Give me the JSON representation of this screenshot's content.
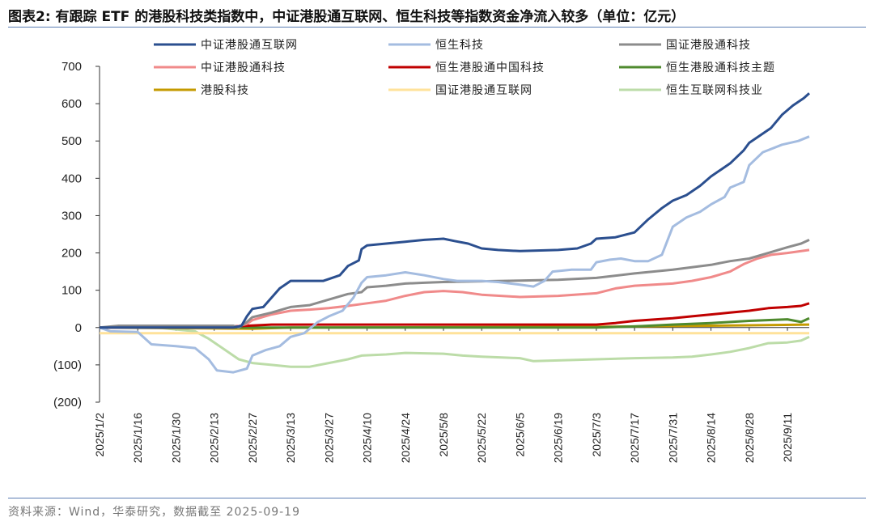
{
  "header": {
    "title": "图表2:   有跟踪 ETF 的港股科技类指数中，中证港股通互联网、恒生科技等指数资金净流入较多（单位：亿元）"
  },
  "footer": {
    "source": "资料来源：Wind，华泰研究，数据截至 2025-09-19"
  },
  "chart_data": {
    "type": "line",
    "title": "有跟踪 ETF 的港股科技类指数中，中证港股通互联网、恒生科技等指数资金净流入较多",
    "ylabel": "亿元",
    "ylim": [
      -200,
      700
    ],
    "yticks": [
      700,
      600,
      500,
      400,
      300,
      200,
      100,
      0,
      -100,
      -200
    ],
    "ytick_labels": [
      "700",
      "600",
      "500",
      "400",
      "300",
      "200",
      "100",
      "0",
      "(100)",
      "(200)"
    ],
    "xlim": [
      "2025-01-02",
      "2025-09-19"
    ],
    "xticks": [
      "2025-01-02",
      "2025-01-16",
      "2025-01-30",
      "2025-02-13",
      "2025-02-27",
      "2025-03-13",
      "2025-03-27",
      "2025-04-10",
      "2025-04-24",
      "2025-05-08",
      "2025-05-22",
      "2025-06-05",
      "2025-06-19",
      "2025-07-03",
      "2025-07-17",
      "2025-07-31",
      "2025-08-14",
      "2025-08-28",
      "2025-09-11"
    ],
    "xtick_labels": [
      "2025/1/2",
      "2025/1/16",
      "2025/1/30",
      "2025/2/13",
      "2025/2/27",
      "2025/3/13",
      "2025/3/27",
      "2025/4/10",
      "2025/4/24",
      "2025/5/8",
      "2025/5/22",
      "2025/6/5",
      "2025/6/19",
      "2025/7/3",
      "2025/7/17",
      "2025/7/31",
      "2025/8/14",
      "2025/8/28",
      "2025/9/11"
    ],
    "grid": false,
    "legend_position": "top",
    "series": [
      {
        "name": "中证港股通互联网",
        "color": "#2b4f8f",
        "width": 3,
        "points": [
          [
            "2025-01-02",
            0
          ],
          [
            "2025-02-20",
            0
          ],
          [
            "2025-02-23",
            5
          ],
          [
            "2025-02-25",
            30
          ],
          [
            "2025-02-27",
            50
          ],
          [
            "2025-03-03",
            55
          ],
          [
            "2025-03-06",
            80
          ],
          [
            "2025-03-09",
            105
          ],
          [
            "2025-03-11",
            115
          ],
          [
            "2025-03-13",
            125
          ],
          [
            "2025-03-20",
            125
          ],
          [
            "2025-03-25",
            125
          ],
          [
            "2025-03-27",
            130
          ],
          [
            "2025-03-31",
            140
          ],
          [
            "2025-04-03",
            165
          ],
          [
            "2025-04-07",
            180
          ],
          [
            "2025-04-08",
            210
          ],
          [
            "2025-04-10",
            220
          ],
          [
            "2025-04-17",
            225
          ],
          [
            "2025-04-24",
            230
          ],
          [
            "2025-05-01",
            235
          ],
          [
            "2025-05-08",
            238
          ],
          [
            "2025-05-12",
            232
          ],
          [
            "2025-05-17",
            225
          ],
          [
            "2025-05-22",
            212
          ],
          [
            "2025-05-28",
            208
          ],
          [
            "2025-06-05",
            205
          ],
          [
            "2025-06-19",
            208
          ],
          [
            "2025-06-26",
            212
          ],
          [
            "2025-07-01",
            225
          ],
          [
            "2025-07-03",
            238
          ],
          [
            "2025-07-10",
            242
          ],
          [
            "2025-07-17",
            255
          ],
          [
            "2025-07-22",
            290
          ],
          [
            "2025-07-27",
            320
          ],
          [
            "2025-07-31",
            340
          ],
          [
            "2025-08-05",
            355
          ],
          [
            "2025-08-10",
            380
          ],
          [
            "2025-08-14",
            405
          ],
          [
            "2025-08-21",
            440
          ],
          [
            "2025-08-26",
            475
          ],
          [
            "2025-08-28",
            495
          ],
          [
            "2025-09-02",
            520
          ],
          [
            "2025-09-05",
            535
          ],
          [
            "2025-09-09",
            570
          ],
          [
            "2025-09-13",
            595
          ],
          [
            "2025-09-17",
            615
          ],
          [
            "2025-09-19",
            628
          ]
        ]
      },
      {
        "name": "恒生科技",
        "color": "#a4bce0",
        "width": 3,
        "points": [
          [
            "2025-01-02",
            0
          ],
          [
            "2025-01-06",
            -10
          ],
          [
            "2025-01-16",
            -12
          ],
          [
            "2025-01-21",
            -45
          ],
          [
            "2025-01-30",
            -50
          ],
          [
            "2025-02-06",
            -55
          ],
          [
            "2025-02-11",
            -85
          ],
          [
            "2025-02-14",
            -115
          ],
          [
            "2025-02-20",
            -120
          ],
          [
            "2025-02-25",
            -110
          ],
          [
            "2025-02-27",
            -75
          ],
          [
            "2025-03-04",
            -60
          ],
          [
            "2025-03-09",
            -50
          ],
          [
            "2025-03-13",
            -25
          ],
          [
            "2025-03-18",
            -15
          ],
          [
            "2025-03-23",
            15
          ],
          [
            "2025-03-27",
            30
          ],
          [
            "2025-04-01",
            45
          ],
          [
            "2025-04-05",
            80
          ],
          [
            "2025-04-08",
            120
          ],
          [
            "2025-04-10",
            135
          ],
          [
            "2025-04-17",
            140
          ],
          [
            "2025-04-24",
            148
          ],
          [
            "2025-05-01",
            140
          ],
          [
            "2025-05-08",
            130
          ],
          [
            "2025-05-13",
            125
          ],
          [
            "2025-05-22",
            125
          ],
          [
            "2025-05-28",
            122
          ],
          [
            "2025-06-05",
            115
          ],
          [
            "2025-06-10",
            110
          ],
          [
            "2025-06-14",
            125
          ],
          [
            "2025-06-17",
            150
          ],
          [
            "2025-06-24",
            155
          ],
          [
            "2025-07-01",
            155
          ],
          [
            "2025-07-03",
            175
          ],
          [
            "2025-07-08",
            182
          ],
          [
            "2025-07-12",
            185
          ],
          [
            "2025-07-17",
            178
          ],
          [
            "2025-07-22",
            178
          ],
          [
            "2025-07-27",
            195
          ],
          [
            "2025-07-31",
            270
          ],
          [
            "2025-08-05",
            295
          ],
          [
            "2025-08-10",
            310
          ],
          [
            "2025-08-14",
            330
          ],
          [
            "2025-08-19",
            350
          ],
          [
            "2025-08-21",
            375
          ],
          [
            "2025-08-26",
            390
          ],
          [
            "2025-08-28",
            435
          ],
          [
            "2025-09-02",
            470
          ],
          [
            "2025-09-09",
            490
          ],
          [
            "2025-09-15",
            500
          ],
          [
            "2025-09-19",
            512
          ]
        ]
      },
      {
        "name": "国证港股通科技",
        "color": "#8c8c8c",
        "width": 3,
        "points": [
          [
            "2025-01-02",
            0
          ],
          [
            "2025-01-09",
            5
          ],
          [
            "2025-02-20",
            5
          ],
          [
            "2025-02-22",
            0
          ],
          [
            "2025-02-25",
            15
          ],
          [
            "2025-02-27",
            28
          ],
          [
            "2025-03-06",
            40
          ],
          [
            "2025-03-13",
            55
          ],
          [
            "2025-03-20",
            60
          ],
          [
            "2025-03-27",
            75
          ],
          [
            "2025-04-03",
            90
          ],
          [
            "2025-04-08",
            95
          ],
          [
            "2025-04-10",
            108
          ],
          [
            "2025-04-17",
            112
          ],
          [
            "2025-04-24",
            118
          ],
          [
            "2025-05-01",
            120
          ],
          [
            "2025-05-08",
            122
          ],
          [
            "2025-05-22",
            124
          ],
          [
            "2025-06-05",
            126
          ],
          [
            "2025-06-19",
            128
          ],
          [
            "2025-07-03",
            133
          ],
          [
            "2025-07-17",
            145
          ],
          [
            "2025-07-31",
            155
          ],
          [
            "2025-08-14",
            168
          ],
          [
            "2025-08-21",
            178
          ],
          [
            "2025-08-28",
            185
          ],
          [
            "2025-09-04",
            200
          ],
          [
            "2025-09-11",
            215
          ],
          [
            "2025-09-16",
            225
          ],
          [
            "2025-09-19",
            235
          ]
        ]
      },
      {
        "name": "中证港股通科技",
        "color": "#f08a8a",
        "width": 3,
        "points": [
          [
            "2025-01-02",
            0
          ],
          [
            "2025-02-20",
            0
          ],
          [
            "2025-02-25",
            10
          ],
          [
            "2025-02-27",
            20
          ],
          [
            "2025-03-06",
            35
          ],
          [
            "2025-03-13",
            45
          ],
          [
            "2025-03-20",
            48
          ],
          [
            "2025-03-27",
            52
          ],
          [
            "2025-04-03",
            58
          ],
          [
            "2025-04-10",
            65
          ],
          [
            "2025-04-17",
            72
          ],
          [
            "2025-04-24",
            85
          ],
          [
            "2025-05-01",
            95
          ],
          [
            "2025-05-08",
            98
          ],
          [
            "2025-05-15",
            95
          ],
          [
            "2025-05-22",
            88
          ],
          [
            "2025-06-05",
            82
          ],
          [
            "2025-06-19",
            85
          ],
          [
            "2025-07-03",
            92
          ],
          [
            "2025-07-10",
            105
          ],
          [
            "2025-07-17",
            112
          ],
          [
            "2025-07-31",
            118
          ],
          [
            "2025-08-07",
            125
          ],
          [
            "2025-08-14",
            135
          ],
          [
            "2025-08-21",
            150
          ],
          [
            "2025-08-26",
            170
          ],
          [
            "2025-08-31",
            185
          ],
          [
            "2025-09-05",
            195
          ],
          [
            "2025-09-11",
            200
          ],
          [
            "2025-09-19",
            208
          ]
        ]
      },
      {
        "name": "恒生港股通中国科技",
        "color": "#c00000",
        "width": 3,
        "points": [
          [
            "2025-01-02",
            0
          ],
          [
            "2025-02-20",
            3
          ],
          [
            "2025-03-06",
            8
          ],
          [
            "2025-03-20",
            8
          ],
          [
            "2025-06-19",
            8
          ],
          [
            "2025-07-03",
            8
          ],
          [
            "2025-07-10",
            12
          ],
          [
            "2025-07-17",
            18
          ],
          [
            "2025-07-31",
            25
          ],
          [
            "2025-08-07",
            30
          ],
          [
            "2025-08-14",
            35
          ],
          [
            "2025-08-21",
            40
          ],
          [
            "2025-08-28",
            45
          ],
          [
            "2025-09-04",
            52
          ],
          [
            "2025-09-11",
            55
          ],
          [
            "2025-09-16",
            58
          ],
          [
            "2025-09-19",
            65
          ]
        ]
      },
      {
        "name": "恒生港股通科技主题",
        "color": "#4f8a2e",
        "width": 3,
        "points": [
          [
            "2025-01-02",
            0
          ],
          [
            "2025-07-03",
            0
          ],
          [
            "2025-07-17",
            3
          ],
          [
            "2025-07-31",
            8
          ],
          [
            "2025-08-14",
            12
          ],
          [
            "2025-08-28",
            18
          ],
          [
            "2025-09-11",
            22
          ],
          [
            "2025-09-16",
            15
          ],
          [
            "2025-09-19",
            25
          ]
        ]
      },
      {
        "name": "港股科技",
        "color": "#c49a00",
        "width": 3,
        "points": [
          [
            "2025-01-02",
            0
          ],
          [
            "2025-02-27",
            -3
          ],
          [
            "2025-03-13",
            0
          ],
          [
            "2025-07-03",
            2
          ],
          [
            "2025-07-31",
            4
          ],
          [
            "2025-08-28",
            6
          ],
          [
            "2025-09-19",
            8
          ]
        ]
      },
      {
        "name": "国证港股通互联网",
        "color": "#ffe29a",
        "width": 3,
        "points": [
          [
            "2025-01-02",
            -15
          ],
          [
            "2025-09-19",
            -15
          ]
        ]
      },
      {
        "name": "恒生互联网科技业",
        "color": "#bcdca8",
        "width": 3,
        "points": [
          [
            "2025-01-02",
            0
          ],
          [
            "2025-01-23",
            0
          ],
          [
            "2025-01-30",
            -5
          ],
          [
            "2025-02-06",
            -10
          ],
          [
            "2025-02-11",
            -30
          ],
          [
            "2025-02-16",
            -55
          ],
          [
            "2025-02-22",
            -85
          ],
          [
            "2025-02-27",
            -95
          ],
          [
            "2025-03-06",
            -100
          ],
          [
            "2025-03-13",
            -105
          ],
          [
            "2025-03-20",
            -105
          ],
          [
            "2025-03-27",
            -95
          ],
          [
            "2025-04-03",
            -85
          ],
          [
            "2025-04-08",
            -75
          ],
          [
            "2025-04-17",
            -72
          ],
          [
            "2025-04-24",
            -68
          ],
          [
            "2025-05-08",
            -70
          ],
          [
            "2025-05-15",
            -75
          ],
          [
            "2025-05-22",
            -78
          ],
          [
            "2025-06-05",
            -82
          ],
          [
            "2025-06-10",
            -90
          ],
          [
            "2025-06-19",
            -88
          ],
          [
            "2025-07-03",
            -85
          ],
          [
            "2025-07-17",
            -82
          ],
          [
            "2025-07-31",
            -80
          ],
          [
            "2025-08-07",
            -78
          ],
          [
            "2025-08-14",
            -72
          ],
          [
            "2025-08-21",
            -65
          ],
          [
            "2025-08-28",
            -55
          ],
          [
            "2025-09-04",
            -42
          ],
          [
            "2025-09-11",
            -40
          ],
          [
            "2025-09-16",
            -35
          ],
          [
            "2025-09-19",
            -25
          ]
        ]
      }
    ]
  }
}
